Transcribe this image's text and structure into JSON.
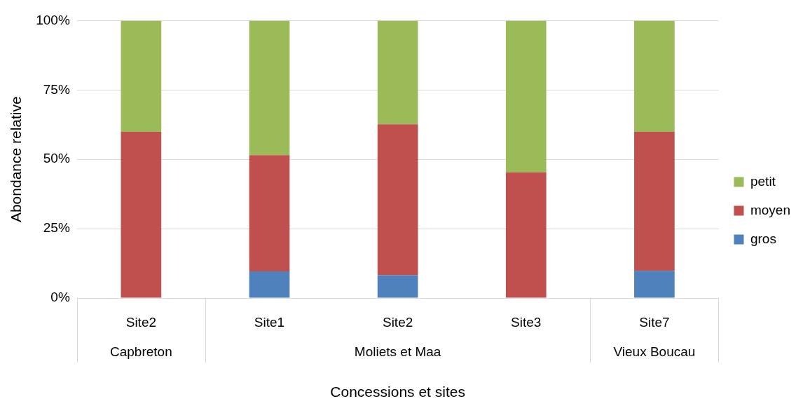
{
  "chart_data": {
    "type": "bar",
    "stacked": true,
    "xlabel": "Concessions et sites",
    "ylabel": "Abondance relative",
    "categories": [
      "Site2",
      "Site1",
      "Site2",
      "Site3",
      "Site7"
    ],
    "series": [
      {
        "name": "gros",
        "color": "#4f81bd",
        "values": [
          0,
          9.6,
          8.2,
          0,
          9.8
        ]
      },
      {
        "name": "moyen",
        "color": "#c0504d",
        "values": [
          59.9,
          41.9,
          54.4,
          45.3,
          50.1
        ]
      },
      {
        "name": "petit",
        "color": "#9bbb59",
        "values": [
          40.1,
          48.5,
          37.4,
          54.7,
          40.1
        ]
      }
    ],
    "ylim": [
      0,
      100
    ],
    "yticks": [
      {
        "value": 0,
        "label": "0%"
      },
      {
        "value": 25,
        "label": "25%"
      },
      {
        "value": 50,
        "label": "50%"
      },
      {
        "value": 75,
        "label": "75%"
      },
      {
        "value": 100,
        "label": "100%"
      }
    ],
    "grid": "y",
    "legend": "right",
    "annotations": [
      "Capbreton",
      "Moliets et Maa",
      "Vieux Boucau"
    ]
  }
}
